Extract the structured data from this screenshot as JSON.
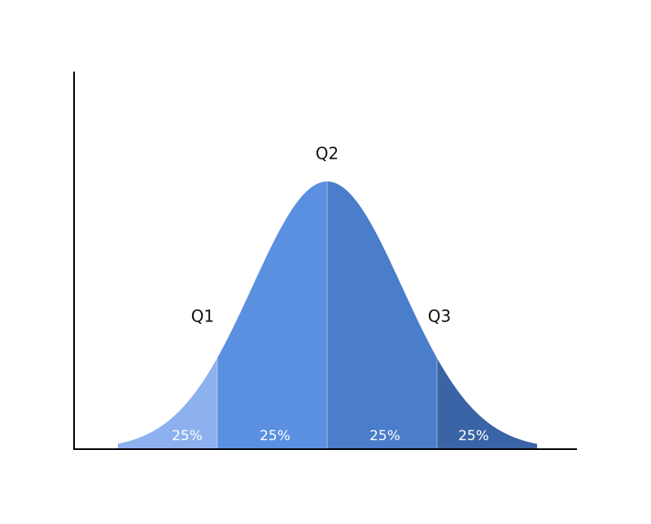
{
  "quartile_labels": [
    "Q1",
    "Q2",
    "Q3"
  ],
  "segments": [
    {
      "label": "25%",
      "color": "#8db1ef"
    },
    {
      "label": "25%",
      "color": "#5b90e1"
    },
    {
      "label": "25%",
      "color": "#4a7dca"
    },
    {
      "label": "25%",
      "color": "#3a64a6"
    }
  ]
}
